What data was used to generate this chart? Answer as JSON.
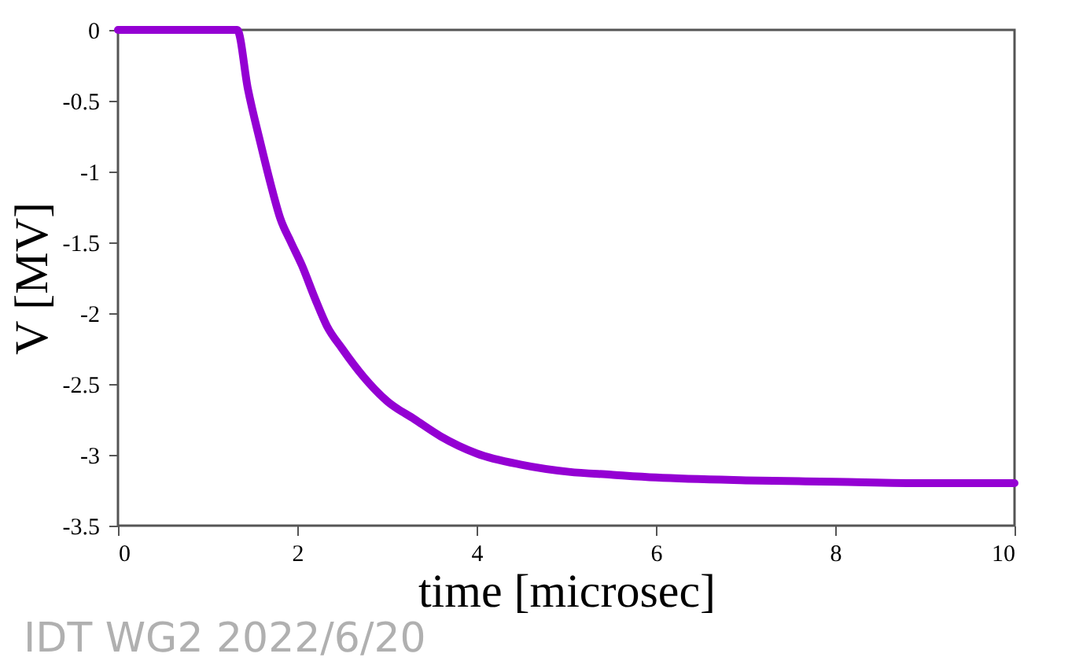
{
  "chart_data": {
    "type": "line",
    "xlabel": "time [microsec]",
    "ylabel": "V [MV]",
    "annotations": [
      "IDT WG2 2022/6/20"
    ],
    "series": [
      {
        "color": "#9400d3",
        "x": [
          0,
          0.5,
          1.0,
          1.33,
          1.45,
          1.59,
          1.7,
          1.81,
          1.93,
          2.05,
          2.2,
          2.33,
          2.5,
          2.74,
          3.0,
          3.31,
          3.6,
          4.0,
          4.5,
          5.03,
          5.5,
          6.0,
          7.0,
          8.0,
          9.0,
          10.0
        ],
        "values": [
          0,
          0,
          0,
          0,
          -0.42,
          -0.8,
          -1.08,
          -1.33,
          -1.5,
          -1.66,
          -1.9,
          -2.09,
          -2.25,
          -2.45,
          -2.62,
          -2.75,
          -2.87,
          -2.99,
          -3.07,
          -3.12,
          -3.14,
          -3.16,
          -3.18,
          -3.19,
          -3.2,
          -3.2
        ]
      }
    ],
    "xlim": [
      0,
      10
    ],
    "xticks": [
      0,
      2,
      4,
      6,
      8,
      10
    ],
    "ylim": [
      -3.5,
      0
    ],
    "yticks": [
      -3.5,
      -3,
      -2.5,
      -2,
      -1.5,
      -1,
      -0.5,
      0
    ],
    "grid": false,
    "legend": false,
    "line_style": "solid",
    "marker": "none"
  }
}
